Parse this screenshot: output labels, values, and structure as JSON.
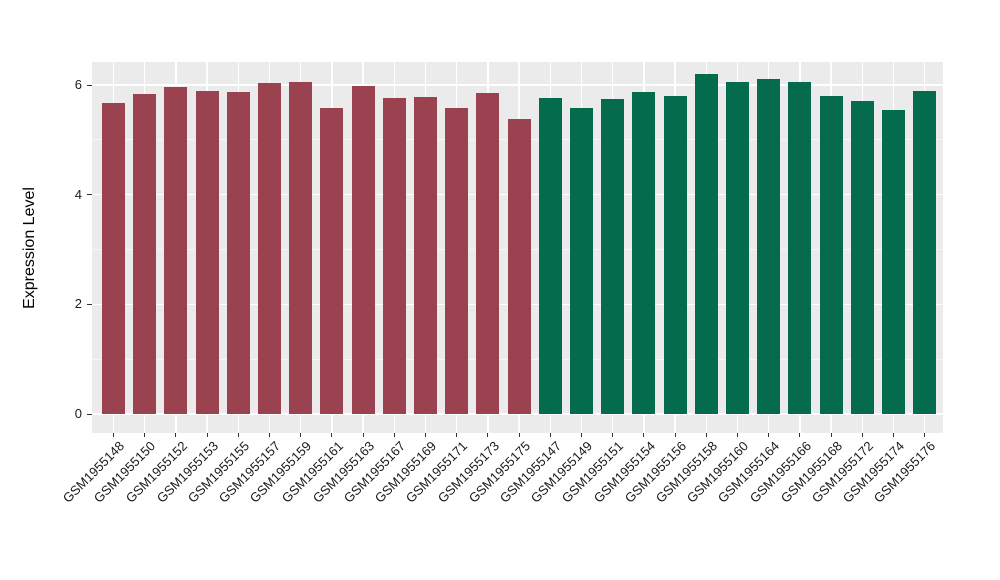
{
  "figure": {
    "background": "#FFFFFF",
    "panel_background": "#EBEBEB",
    "major_grid_color": "#FFFFFF",
    "minor_grid_color": "#F6F6F6",
    "axis_text_color": "#1A1A1A",
    "tick_mark_color": "#333333"
  },
  "chart_data": {
    "type": "bar",
    "title": "",
    "xlabel": "",
    "ylabel": "Expression Level",
    "ylim": [
      -0.35,
      6.42
    ],
    "yticks": [
      0,
      2,
      4,
      6
    ],
    "yminor": [
      1,
      3,
      5
    ],
    "grid": "on",
    "legend": "none",
    "series": [
      {
        "color": "#9B4251",
        "labels": [
          "GSM1955148",
          "GSM1955150",
          "GSM1955152",
          "GSM1955153",
          "GSM1955155",
          "GSM1955157",
          "GSM1955159",
          "GSM1955161",
          "GSM1955163",
          "GSM1955167",
          "GSM1955169",
          "GSM1955171",
          "GSM1955173",
          "GSM1955175"
        ],
        "values": [
          5.67,
          5.84,
          5.97,
          5.9,
          5.88,
          6.03,
          6.05,
          5.58,
          5.99,
          5.77,
          5.78,
          5.58,
          5.85,
          5.38
        ]
      },
      {
        "color": "#046B4D",
        "labels": [
          "GSM1955147",
          "GSM1955149",
          "GSM1955151",
          "GSM1955154",
          "GSM1955156",
          "GSM1955158",
          "GSM1955160",
          "GSM1955164",
          "GSM1955166",
          "GSM1955168",
          "GSM1955172",
          "GSM1955174",
          "GSM1955176"
        ],
        "values": [
          5.77,
          5.59,
          5.75,
          5.88,
          5.8,
          6.2,
          6.05,
          6.11,
          6.06,
          5.8,
          5.7,
          5.55,
          5.9
        ]
      }
    ]
  }
}
